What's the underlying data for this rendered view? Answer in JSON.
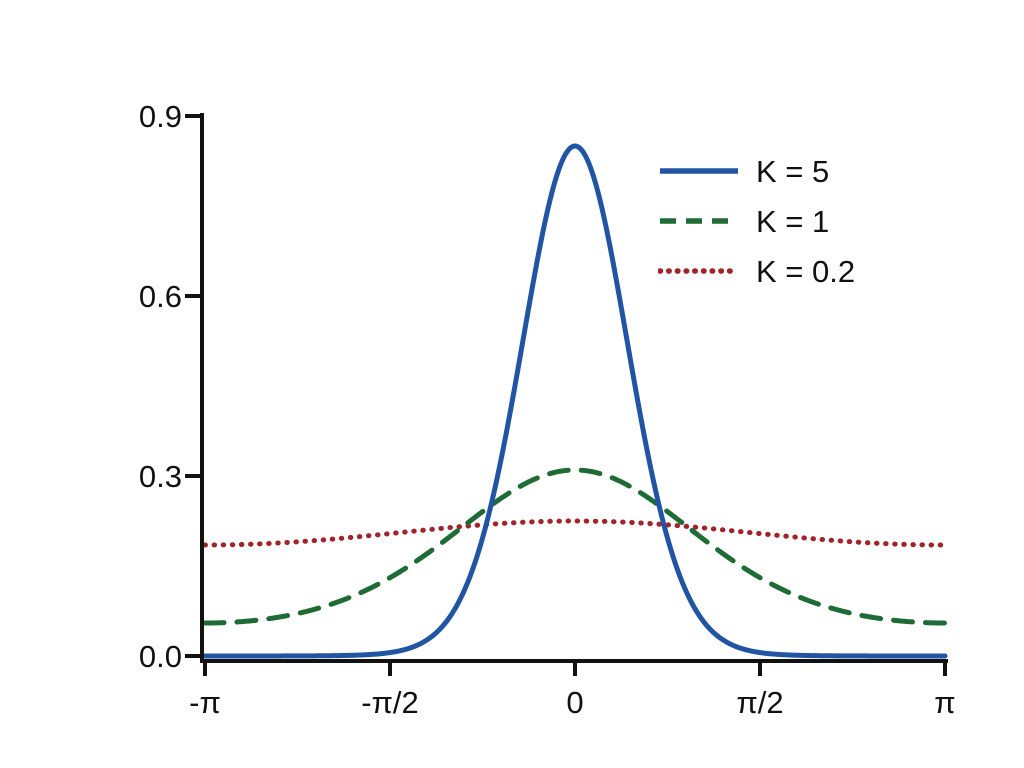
{
  "page": {
    "background": "#ffffff",
    "text_color": "#111111",
    "axis_color": "#111111"
  },
  "chart_data": {
    "type": "line",
    "title": "",
    "xlabel": "",
    "ylabel": "",
    "x_unit": "radians (x expressed in multiples of pi)",
    "xlim_pi": [
      -1,
      1
    ],
    "ylim": [
      0,
      0.9
    ],
    "grid": false,
    "legend_position": "upper-right",
    "x_ticks": [
      {
        "pos": -1,
        "label": "-π"
      },
      {
        "pos": -0.5,
        "label": "-π/2"
      },
      {
        "pos": 0,
        "label": "0"
      },
      {
        "pos": 0.5,
        "label": "π/2"
      },
      {
        "pos": 1,
        "label": "π"
      }
    ],
    "y_ticks": [
      {
        "pos": 0.0,
        "label": "0.0"
      },
      {
        "pos": 0.3,
        "label": "0.3"
      },
      {
        "pos": 0.6,
        "label": "0.6"
      },
      {
        "pos": 0.9,
        "label": "0.9"
      }
    ],
    "series": [
      {
        "name": "K5",
        "label": "K = 5",
        "color": "#2155a3",
        "style": "solid",
        "peak": 0.85,
        "shape_k": 5,
        "amp": 0.85,
        "x_pi": [
          -1,
          -0.9,
          -0.8,
          -0.7,
          -0.6,
          -0.5,
          -0.4,
          -0.3,
          -0.2,
          -0.1,
          0,
          0.1,
          0.2,
          0.3,
          0.4,
          0.5,
          0.6,
          0.7,
          0.8,
          0.9,
          1
        ],
        "y": [
          0.0,
          0.0,
          0.0,
          0.0,
          0.001,
          0.006,
          0.027,
          0.108,
          0.327,
          0.665,
          0.85,
          0.665,
          0.327,
          0.108,
          0.027,
          0.006,
          0.001,
          0.0,
          0.0,
          0.0,
          0.0
        ]
      },
      {
        "name": "K1",
        "label": "K = 1",
        "color": "#1e6b35",
        "style": "dashed",
        "peak": 0.31,
        "shape_k": 0.865,
        "amp": 0.31,
        "x_pi": [
          -1,
          -0.9,
          -0.8,
          -0.7,
          -0.6,
          -0.5,
          -0.4,
          -0.3,
          -0.2,
          -0.1,
          0,
          0.1,
          0.2,
          0.3,
          0.4,
          0.5,
          0.6,
          0.7,
          0.8,
          0.9,
          1
        ],
        "y": [
          0.055,
          0.057,
          0.065,
          0.079,
          0.1,
          0.131,
          0.171,
          0.217,
          0.263,
          0.297,
          0.31,
          0.297,
          0.263,
          0.217,
          0.171,
          0.131,
          0.1,
          0.079,
          0.065,
          0.057,
          0.055
        ]
      },
      {
        "name": "K02",
        "label": "K = 0.2",
        "color": "#a1242b",
        "style": "dotted",
        "peak": 0.225,
        "shape_k": 0.098,
        "amp": 0.225,
        "x_pi": [
          -1,
          -0.9,
          -0.8,
          -0.7,
          -0.6,
          -0.5,
          -0.4,
          -0.3,
          -0.2,
          -0.1,
          0,
          0.1,
          0.2,
          0.3,
          0.4,
          0.5,
          0.6,
          0.7,
          0.8,
          0.9,
          1
        ],
        "y": [
          0.185,
          0.186,
          0.188,
          0.193,
          0.198,
          0.204,
          0.21,
          0.216,
          0.221,
          0.224,
          0.225,
          0.224,
          0.221,
          0.216,
          0.21,
          0.204,
          0.198,
          0.193,
          0.188,
          0.186,
          0.185
        ]
      }
    ]
  }
}
